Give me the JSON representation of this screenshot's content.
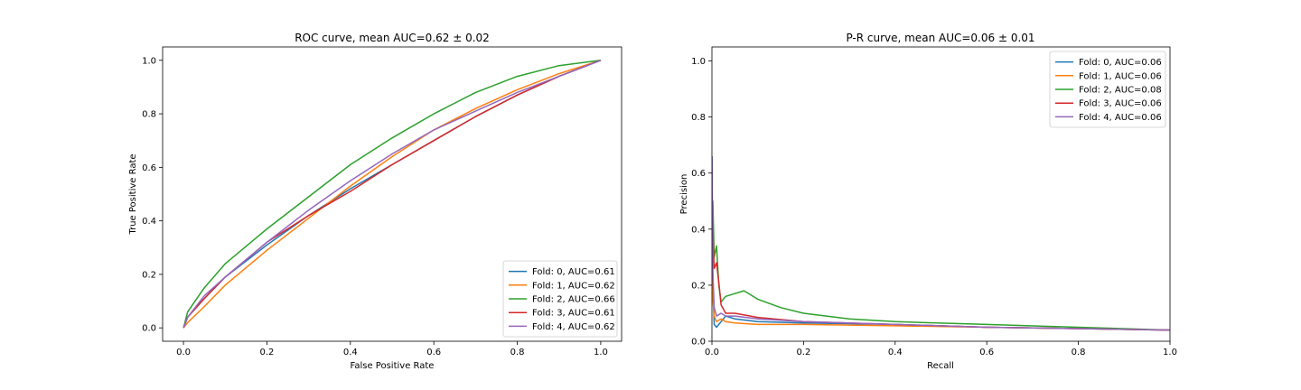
{
  "chart_data": [
    {
      "type": "line",
      "title": "ROC curve, mean AUC=0.62 ± 0.02",
      "xlabel": "False Positive Rate",
      "ylabel": "True Positive Rate",
      "xlim": [
        -0.05,
        1.05
      ],
      "ylim": [
        -0.05,
        1.05
      ],
      "xticks": [
        0.0,
        0.2,
        0.4,
        0.6,
        0.8,
        1.0
      ],
      "yticks": [
        0.0,
        0.2,
        0.4,
        0.6,
        0.8,
        1.0
      ],
      "xtick_labels": [
        "0.0",
        "0.2",
        "0.4",
        "0.6",
        "0.8",
        "1.0"
      ],
      "ytick_labels": [
        "0.0",
        "0.2",
        "0.4",
        "0.6",
        "0.8",
        "1.0"
      ],
      "grid": false,
      "legend_position": "lower-right",
      "series": [
        {
          "name": "Fold: 0, AUC=0.61",
          "color": "#1f77b4",
          "x": [
            0,
            0.01,
            0.05,
            0.1,
            0.2,
            0.3,
            0.4,
            0.5,
            0.6,
            0.7,
            0.8,
            0.9,
            1.0
          ],
          "y": [
            0,
            0.04,
            0.11,
            0.19,
            0.31,
            0.42,
            0.52,
            0.61,
            0.7,
            0.79,
            0.87,
            0.94,
            1.0
          ]
        },
        {
          "name": "Fold: 1, AUC=0.62",
          "color": "#ff7f0e",
          "x": [
            0,
            0.01,
            0.05,
            0.1,
            0.2,
            0.3,
            0.4,
            0.5,
            0.6,
            0.7,
            0.8,
            0.9,
            1.0
          ],
          "y": [
            0,
            0.02,
            0.08,
            0.16,
            0.29,
            0.41,
            0.53,
            0.64,
            0.74,
            0.82,
            0.89,
            0.95,
            1.0
          ]
        },
        {
          "name": "Fold: 2, AUC=0.66",
          "color": "#2ca02c",
          "x": [
            0,
            0.01,
            0.05,
            0.1,
            0.2,
            0.3,
            0.4,
            0.5,
            0.6,
            0.7,
            0.8,
            0.9,
            1.0
          ],
          "y": [
            0,
            0.06,
            0.15,
            0.24,
            0.37,
            0.49,
            0.61,
            0.71,
            0.8,
            0.88,
            0.94,
            0.98,
            1.0
          ]
        },
        {
          "name": "Fold: 3, AUC=0.61",
          "color": "#d62728",
          "x": [
            0,
            0.01,
            0.05,
            0.1,
            0.2,
            0.3,
            0.4,
            0.5,
            0.6,
            0.7,
            0.8,
            0.9,
            1.0
          ],
          "y": [
            0,
            0.04,
            0.11,
            0.19,
            0.32,
            0.42,
            0.51,
            0.61,
            0.7,
            0.79,
            0.87,
            0.94,
            1.0
          ]
        },
        {
          "name": "Fold: 4, AUC=0.62",
          "color": "#9467bd",
          "x": [
            0,
            0.01,
            0.05,
            0.1,
            0.2,
            0.3,
            0.4,
            0.5,
            0.6,
            0.7,
            0.8,
            0.9,
            1.0
          ],
          "y": [
            0,
            0.04,
            0.12,
            0.19,
            0.32,
            0.44,
            0.55,
            0.65,
            0.74,
            0.81,
            0.88,
            0.94,
            1.0
          ]
        }
      ]
    },
    {
      "type": "line",
      "title": "P-R curve, mean AUC=0.06 ± 0.01",
      "xlabel": "Recall",
      "ylabel": "Precision",
      "xlim": [
        0.0,
        1.0
      ],
      "ylim": [
        0.0,
        1.05
      ],
      "xticks": [
        0.0,
        0.2,
        0.4,
        0.6,
        0.8,
        1.0
      ],
      "yticks": [
        0.0,
        0.2,
        0.4,
        0.6,
        0.8,
        1.0
      ],
      "xtick_labels": [
        "0.0",
        "0.2",
        "0.4",
        "0.6",
        "0.8",
        "1.0"
      ],
      "ytick_labels": [
        "0.0",
        "0.2",
        "0.4",
        "0.6",
        "0.8",
        "1.0"
      ],
      "grid": false,
      "legend_position": "upper-right",
      "series": [
        {
          "name": "Fold: 0, AUC=0.06",
          "color": "#1f77b4",
          "x": [
            0,
            0.002,
            0.005,
            0.01,
            0.02,
            0.03,
            0.05,
            0.1,
            0.2,
            0.4,
            0.6,
            0.8,
            1.0
          ],
          "y": [
            0.66,
            0.2,
            0.06,
            0.05,
            0.07,
            0.09,
            0.08,
            0.07,
            0.065,
            0.06,
            0.05,
            0.045,
            0.04
          ]
        },
        {
          "name": "Fold: 1, AUC=0.06",
          "color": "#ff7f0e",
          "x": [
            0,
            0.002,
            0.005,
            0.01,
            0.02,
            0.03,
            0.05,
            0.1,
            0.2,
            0.4,
            0.6,
            0.8,
            1.0
          ],
          "y": [
            0.45,
            0.15,
            0.09,
            0.07,
            0.08,
            0.07,
            0.065,
            0.06,
            0.06,
            0.055,
            0.05,
            0.045,
            0.04
          ]
        },
        {
          "name": "Fold: 2, AUC=0.08",
          "color": "#2ca02c",
          "x": [
            0,
            0.002,
            0.005,
            0.01,
            0.015,
            0.02,
            0.03,
            0.05,
            0.07,
            0.1,
            0.15,
            0.2,
            0.3,
            0.4,
            0.6,
            0.8,
            1.0
          ],
          "y": [
            0.5,
            0.5,
            0.3,
            0.34,
            0.2,
            0.14,
            0.16,
            0.17,
            0.18,
            0.15,
            0.12,
            0.1,
            0.08,
            0.07,
            0.06,
            0.05,
            0.04
          ]
        },
        {
          "name": "Fold: 3, AUC=0.06",
          "color": "#d62728",
          "x": [
            0,
            0.002,
            0.005,
            0.01,
            0.015,
            0.02,
            0.03,
            0.05,
            0.1,
            0.2,
            0.4,
            0.6,
            0.8,
            1.0
          ],
          "y": [
            0.45,
            0.4,
            0.26,
            0.28,
            0.21,
            0.13,
            0.1,
            0.1,
            0.085,
            0.07,
            0.06,
            0.05,
            0.045,
            0.04
          ]
        },
        {
          "name": "Fold: 4, AUC=0.06",
          "color": "#9467bd",
          "x": [
            0,
            0.002,
            0.005,
            0.01,
            0.02,
            0.03,
            0.05,
            0.1,
            0.2,
            0.4,
            0.6,
            0.8,
            1.0
          ],
          "y": [
            0.66,
            0.25,
            0.12,
            0.09,
            0.1,
            0.09,
            0.09,
            0.08,
            0.07,
            0.06,
            0.05,
            0.045,
            0.04
          ]
        }
      ]
    }
  ]
}
